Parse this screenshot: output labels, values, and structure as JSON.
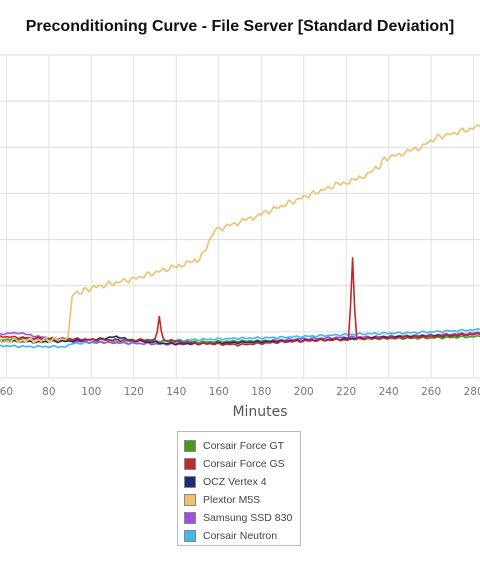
{
  "chart_data": {
    "type": "line",
    "title": "Preconditioning Curve - File Server [Standard Deviation]",
    "xlabel": "Minutes",
    "ylabel": "",
    "x_ticks": [
      60,
      80,
      100,
      120,
      140,
      160,
      180,
      200,
      220,
      240,
      260,
      280
    ],
    "xlim": [
      57,
      283
    ],
    "ylim": [
      0,
      7
    ],
    "grid": true,
    "legend_position": "bottom",
    "series": [
      {
        "name": "Corsair Force GT",
        "color": "#4c9a1d",
        "points": [
          [
            57,
            0.83
          ],
          [
            70,
            0.85
          ],
          [
            90,
            0.82
          ],
          [
            110,
            0.83
          ],
          [
            130,
            0.8
          ],
          [
            150,
            0.78
          ],
          [
            170,
            0.8
          ],
          [
            190,
            0.8
          ],
          [
            210,
            0.83
          ],
          [
            230,
            0.85
          ],
          [
            250,
            0.86
          ],
          [
            270,
            0.88
          ],
          [
            283,
            0.9
          ]
        ]
      },
      {
        "name": "Corsair Force GS",
        "color": "#c0282b",
        "points": [
          [
            57,
            0.9
          ],
          [
            70,
            0.87
          ],
          [
            90,
            0.85
          ],
          [
            110,
            0.82
          ],
          [
            130,
            0.83
          ],
          [
            131,
            1.0
          ],
          [
            132,
            1.35
          ],
          [
            133,
            1.0
          ],
          [
            134,
            0.83
          ],
          [
            150,
            0.75
          ],
          [
            170,
            0.72
          ],
          [
            190,
            0.78
          ],
          [
            210,
            0.82
          ],
          [
            221,
            0.83
          ],
          [
            222,
            1.5
          ],
          [
            223,
            2.6
          ],
          [
            224,
            1.5
          ],
          [
            225,
            0.85
          ],
          [
            240,
            0.87
          ],
          [
            260,
            0.9
          ],
          [
            283,
            0.95
          ]
        ]
      },
      {
        "name": "OCZ Vertex 4",
        "color": "#1d2a7c",
        "points": [
          [
            57,
            0.8
          ],
          [
            75,
            0.78
          ],
          [
            90,
            0.8
          ],
          [
            105,
            0.85
          ],
          [
            112,
            0.9
          ],
          [
            118,
            0.82
          ],
          [
            135,
            0.75
          ],
          [
            150,
            0.74
          ],
          [
            170,
            0.77
          ],
          [
            190,
            0.8
          ],
          [
            210,
            0.83
          ],
          [
            230,
            0.87
          ],
          [
            250,
            0.9
          ],
          [
            270,
            0.92
          ],
          [
            283,
            0.95
          ]
        ]
      },
      {
        "name": "Plextor M5S",
        "color": "#f0c070",
        "points": [
          [
            57,
            0.8
          ],
          [
            80,
            0.82
          ],
          [
            89,
            0.85
          ],
          [
            91,
            1.8
          ],
          [
            100,
            1.95
          ],
          [
            120,
            2.15
          ],
          [
            140,
            2.42
          ],
          [
            150,
            2.55
          ],
          [
            152,
            2.65
          ],
          [
            155,
            2.9
          ],
          [
            158,
            3.2
          ],
          [
            170,
            3.38
          ],
          [
            180,
            3.55
          ],
          [
            200,
            3.92
          ],
          [
            215,
            4.18
          ],
          [
            225,
            4.3
          ],
          [
            235,
            4.55
          ],
          [
            238,
            4.75
          ],
          [
            245,
            4.85
          ],
          [
            255,
            5.0
          ],
          [
            262,
            5.2
          ],
          [
            270,
            5.3
          ],
          [
            283,
            5.45
          ]
        ]
      },
      {
        "name": "Samsung SSD 830",
        "color": "#a050e0",
        "points": [
          [
            57,
            0.95
          ],
          [
            65,
            0.98
          ],
          [
            75,
            0.9
          ],
          [
            88,
            0.8
          ],
          [
            100,
            0.78
          ],
          [
            120,
            0.75
          ],
          [
            140,
            0.73
          ],
          [
            160,
            0.77
          ],
          [
            180,
            0.8
          ],
          [
            200,
            0.85
          ],
          [
            220,
            0.88
          ],
          [
            240,
            0.9
          ],
          [
            260,
            0.93
          ],
          [
            283,
            0.98
          ]
        ]
      },
      {
        "name": "Corsair Neutron",
        "color": "#40b8e8",
        "points": [
          [
            57,
            0.7
          ],
          [
            70,
            0.68
          ],
          [
            88,
            0.68
          ],
          [
            92,
            0.75
          ],
          [
            110,
            0.78
          ],
          [
            130,
            0.8
          ],
          [
            150,
            0.83
          ],
          [
            170,
            0.86
          ],
          [
            190,
            0.88
          ],
          [
            210,
            0.92
          ],
          [
            230,
            0.96
          ],
          [
            250,
            0.98
          ],
          [
            270,
            1.02
          ],
          [
            283,
            1.05
          ]
        ]
      }
    ]
  }
}
